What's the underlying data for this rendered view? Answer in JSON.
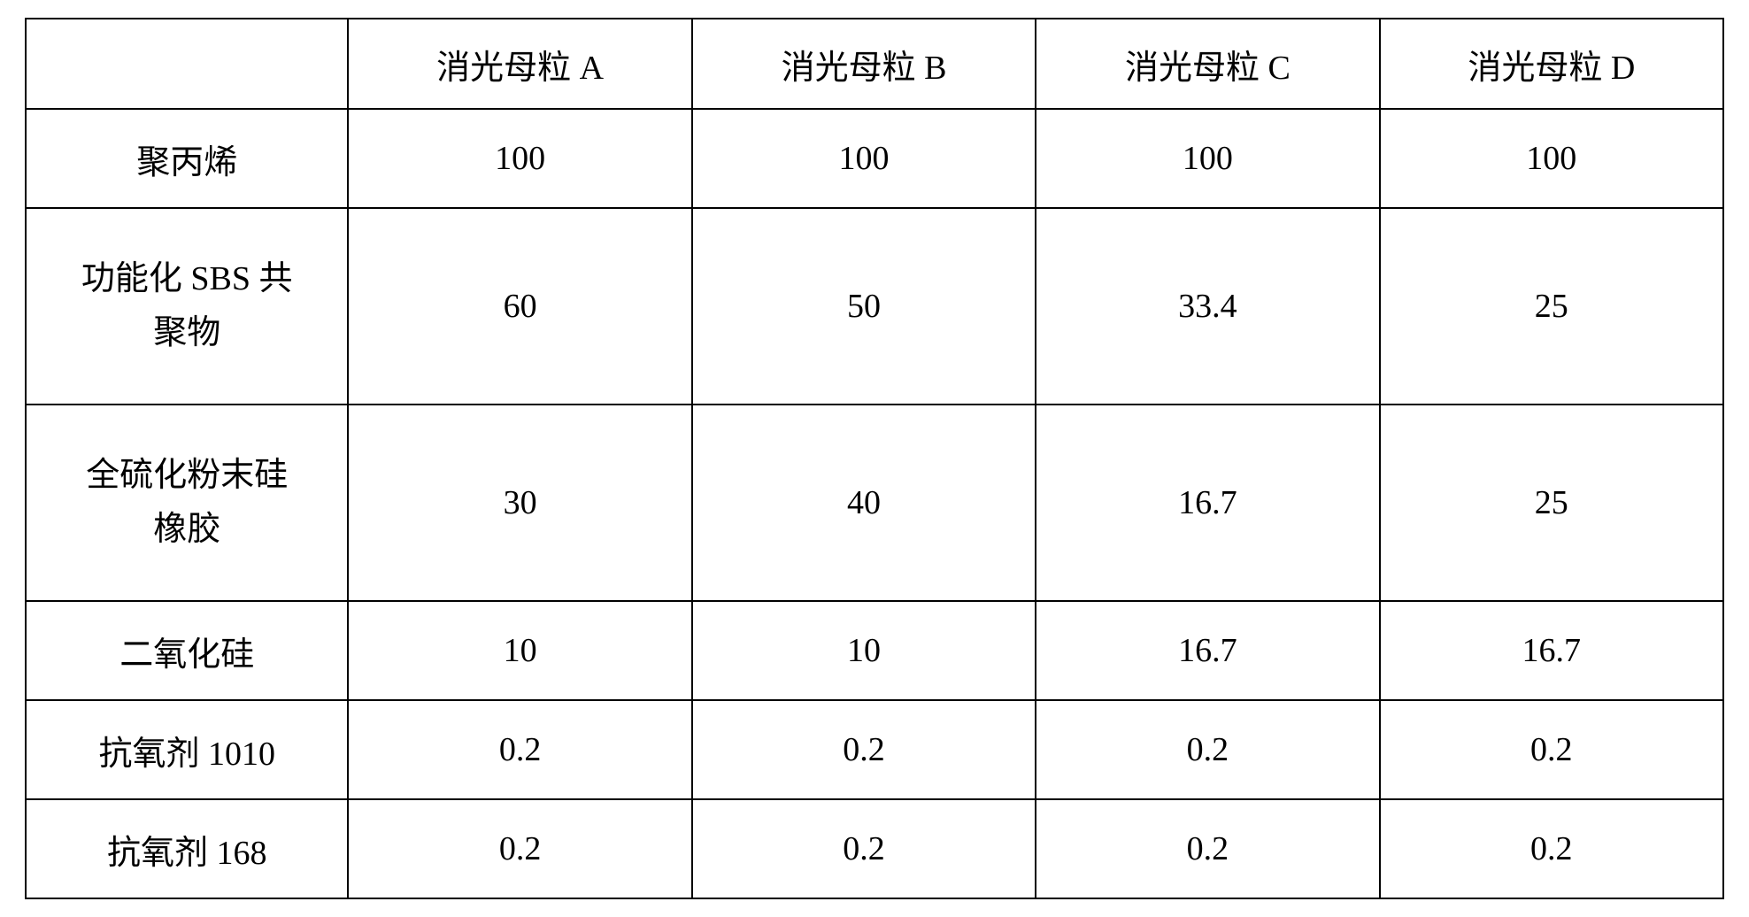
{
  "table": {
    "columns": [
      "",
      "消光母粒 A",
      "消光母粒 B",
      "消光母粒 C",
      "消光母粒 D"
    ],
    "rows": [
      {
        "label": "聚丙烯",
        "cells": [
          "100",
          "100",
          "100",
          "100"
        ],
        "multi": false
      },
      {
        "label": "功能化 SBS 共\n聚物",
        "cells": [
          "60",
          "50",
          "33.4",
          "25"
        ],
        "multi": true
      },
      {
        "label": "全硫化粉末硅\n橡胶",
        "cells": [
          "30",
          "40",
          "16.7",
          "25"
        ],
        "multi": true
      },
      {
        "label": "二氧化硅",
        "cells": [
          "10",
          "10",
          "16.7",
          "16.7"
        ],
        "multi": false
      },
      {
        "label": "抗氧剂 1010",
        "cells": [
          "0.2",
          "0.2",
          "0.2",
          "0.2"
        ],
        "multi": false
      },
      {
        "label": "抗氧剂 168",
        "cells": [
          "0.2",
          "0.2",
          "0.2",
          "0.2"
        ],
        "multi": false
      }
    ],
    "border_color": "#000000",
    "background_color": "#ffffff",
    "font_size": 38,
    "header_row_height": 100,
    "single_row_height": 110,
    "double_row_height": 220
  }
}
